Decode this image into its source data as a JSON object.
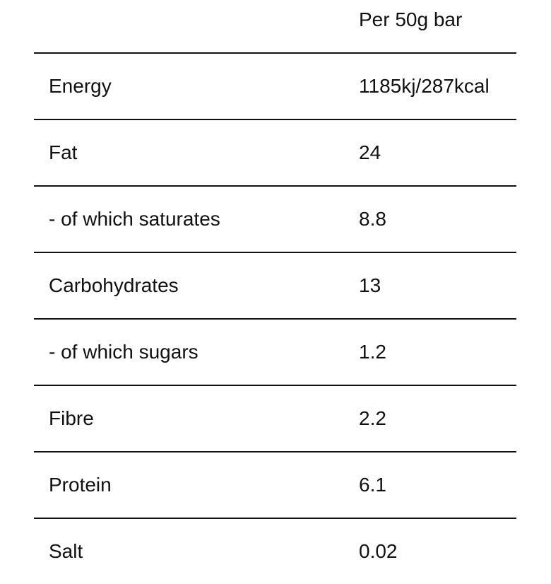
{
  "table": {
    "column_header": "Per 50g bar",
    "rows": [
      {
        "name": "Energy",
        "value": "1185kj/287kcal"
      },
      {
        "name": "Fat",
        "value": "24"
      },
      {
        "name": "- of which saturates",
        "value": "8.8"
      },
      {
        "name": "Carbohydrates",
        "value": "13"
      },
      {
        "name": "- of which sugars",
        "value": "1.2"
      },
      {
        "name": "Fibre",
        "value": "2.2"
      },
      {
        "name": "Protein",
        "value": "6.1"
      },
      {
        "name": "Salt",
        "value": "0.02"
      }
    ]
  }
}
